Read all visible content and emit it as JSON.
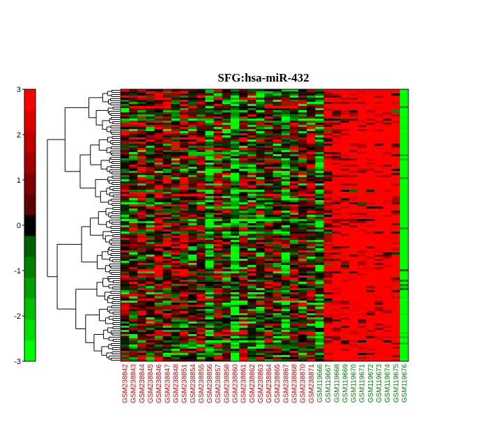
{
  "chart_data": {
    "type": "heatmap",
    "title": "SFG:hsa-miR-432",
    "colorbar": {
      "ticks": [
        3,
        2,
        1,
        0,
        -1,
        -2,
        -3
      ],
      "range": [
        -3,
        3
      ],
      "colors": [
        "#00ff00",
        "#00e000",
        "#00c000",
        "#00a000",
        "#008000",
        "#006000",
        "#000000",
        "#600000",
        "#800000",
        "#a00000",
        "#c00000",
        "#e00000",
        "#ff0000"
      ]
    },
    "columns": [
      {
        "label": "GSM238842",
        "group": "red"
      },
      {
        "label": "GSM238843",
        "group": "red"
      },
      {
        "label": "GSM238844",
        "group": "red"
      },
      {
        "label": "GSM238845",
        "group": "red"
      },
      {
        "label": "GSM238846",
        "group": "red"
      },
      {
        "label": "GSM238847",
        "group": "red"
      },
      {
        "label": "GSM238848",
        "group": "red"
      },
      {
        "label": "GSM238851",
        "group": "red"
      },
      {
        "label": "GSM238854",
        "group": "red"
      },
      {
        "label": "GSM238855",
        "group": "red"
      },
      {
        "label": "GSM238856",
        "group": "red"
      },
      {
        "label": "GSM238857",
        "group": "red"
      },
      {
        "label": "GSM238858",
        "group": "red"
      },
      {
        "label": "GSM238860",
        "group": "red"
      },
      {
        "label": "GSM238861",
        "group": "red"
      },
      {
        "label": "GSM238862",
        "group": "red"
      },
      {
        "label": "GSM238863",
        "group": "red"
      },
      {
        "label": "GSM238864",
        "group": "red"
      },
      {
        "label": "GSM238865",
        "group": "red"
      },
      {
        "label": "GSM238867",
        "group": "red"
      },
      {
        "label": "GSM238868",
        "group": "red"
      },
      {
        "label": "GSM238870",
        "group": "red"
      },
      {
        "label": "GSM238871",
        "group": "red"
      },
      {
        "label": "GSM119666",
        "group": "green"
      },
      {
        "label": "GSM119667",
        "group": "green"
      },
      {
        "label": "GSM119668",
        "group": "green"
      },
      {
        "label": "GSM119669",
        "group": "green"
      },
      {
        "label": "GSM119670",
        "group": "green"
      },
      {
        "label": "GSM119671",
        "group": "green"
      },
      {
        "label": "GSM119672",
        "group": "green"
      },
      {
        "label": "GSM119673",
        "group": "green"
      },
      {
        "label": "GSM119674",
        "group": "green"
      },
      {
        "label": "GSM119675",
        "group": "green"
      },
      {
        "label": "GSM119676",
        "group": "green"
      }
    ],
    "column_group_colors": {
      "red": "#cc0000",
      "green": "#008000"
    },
    "row_count": 130,
    "column_mean_profile": [
      0.2,
      0.0,
      0.4,
      0.1,
      0.5,
      0.4,
      0.2,
      0.5,
      0.1,
      0.3,
      -0.6,
      0.4,
      0.0,
      -0.9,
      0.1,
      -0.3,
      -0.2,
      0.3,
      0.1,
      -0.4,
      0.2,
      0.1,
      0.3,
      -0.4,
      1.2,
      1.5,
      1.6,
      1.8,
      1.8,
      1.8,
      1.9,
      1.9,
      1.8,
      -1.9
    ],
    "dendrogram": true,
    "grid": false
  }
}
